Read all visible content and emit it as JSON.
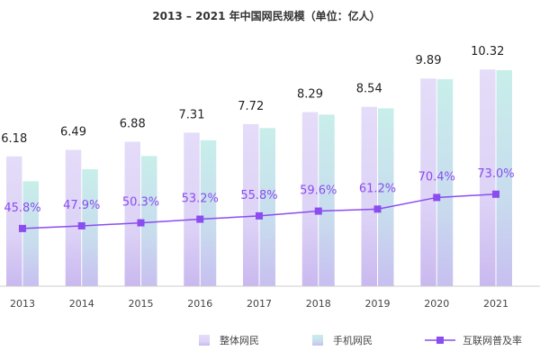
{
  "chart_data": {
    "type": "bar",
    "title": "2013 – 2021 年中国网民规模（单位：亿人）",
    "categories": [
      "2013",
      "2014",
      "2015",
      "2016",
      "2017",
      "2018",
      "2019",
      "2020",
      "2021"
    ],
    "series": [
      {
        "name": "整体网民",
        "kind": "bar",
        "values": [
          6.18,
          6.49,
          6.88,
          7.31,
          7.72,
          8.29,
          8.54,
          9.89,
          10.32
        ],
        "value_labels": [
          "6.18",
          "6.49",
          "6.88",
          "7.31",
          "7.72",
          "8.29",
          "8.54",
          "9.89",
          "10.32"
        ],
        "color_top": "#e4dcf8",
        "color_bottom": "#c9b8ef"
      },
      {
        "name": "手机网民",
        "kind": "bar",
        "values": [
          5.0,
          5.57,
          6.2,
          6.95,
          7.53,
          8.17,
          8.47,
          9.86,
          10.29
        ],
        "color_top": "#c8eeea",
        "color_bottom": "#c7bff0"
      },
      {
        "name": "互联网普及率",
        "kind": "line",
        "values": [
          45.8,
          47.9,
          50.3,
          53.2,
          55.8,
          59.6,
          61.2,
          70.4,
          73.0
        ],
        "value_labels": [
          "45.8%",
          "47.9%",
          "50.3%",
          "53.2%",
          "55.8%",
          "59.6%",
          "61.2%",
          "70.4%",
          "73.0%"
        ],
        "color": "#8b4cf0"
      }
    ],
    "ylim_bars": [
      0,
      12
    ],
    "ylim_line": [
      0,
      200
    ],
    "grid": false,
    "legend_position": "bottom"
  }
}
